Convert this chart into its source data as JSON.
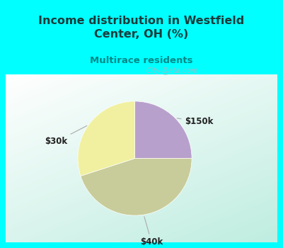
{
  "title": "Income distribution in Westfield\nCenter, OH (%)",
  "subtitle": "Multirace residents",
  "title_color": "#1a3a3a",
  "subtitle_color": "#008888",
  "title_bg_color": "#00ffff",
  "slices": [
    {
      "label": "$150k",
      "value": 25,
      "color": "#b8a0cc"
    },
    {
      "label": "$40k",
      "value": 45,
      "color": "#c8cc9a"
    },
    {
      "label": "$30k",
      "value": 30,
      "color": "#f0f0a0"
    }
  ],
  "watermark": "City-Data.com",
  "figsize": [
    4.0,
    3.5
  ],
  "dpi": 100,
  "border_color": "#00ffff",
  "border_width": 10,
  "chart_bg_color": "#e8f5f0"
}
